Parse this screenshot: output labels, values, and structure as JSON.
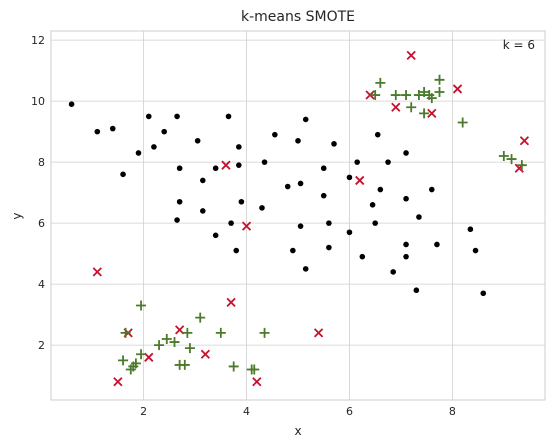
{
  "chart_data": {
    "type": "scatter",
    "title": "k-means SMOTE",
    "xlabel": "x",
    "ylabel": "y",
    "annotation": "k = 6",
    "xlim": [
      0.2,
      9.8
    ],
    "ylim": [
      0.2,
      12.3
    ],
    "xticks": [
      2,
      4,
      6,
      8
    ],
    "yticks": [
      2,
      4,
      6,
      8,
      10,
      12
    ],
    "grid": true,
    "legend": "none",
    "series": [
      {
        "marker": "circle",
        "color": "#000000",
        "points": [
          [
            0.6,
            9.9
          ],
          [
            1.1,
            9.0
          ],
          [
            1.4,
            9.1
          ],
          [
            1.6,
            7.6
          ],
          [
            1.9,
            8.3
          ],
          [
            2.1,
            9.5
          ],
          [
            2.2,
            8.5
          ],
          [
            2.4,
            9.0
          ],
          [
            2.65,
            9.5
          ],
          [
            2.7,
            7.8
          ],
          [
            2.7,
            6.7
          ],
          [
            2.65,
            6.1
          ],
          [
            3.05,
            8.7
          ],
          [
            3.15,
            7.4
          ],
          [
            3.15,
            6.4
          ],
          [
            3.4,
            5.6
          ],
          [
            3.4,
            7.8
          ],
          [
            3.65,
            9.5
          ],
          [
            3.7,
            6.0
          ],
          [
            3.8,
            5.1
          ],
          [
            3.85,
            8.5
          ],
          [
            3.85,
            7.9
          ],
          [
            3.9,
            6.7
          ],
          [
            4.35,
            8.0
          ],
          [
            4.3,
            6.5
          ],
          [
            4.55,
            8.9
          ],
          [
            4.8,
            7.2
          ],
          [
            4.9,
            5.1
          ],
          [
            5.0,
            8.7
          ],
          [
            5.05,
            7.3
          ],
          [
            5.05,
            5.9
          ],
          [
            5.15,
            9.4
          ],
          [
            5.15,
            4.5
          ],
          [
            5.5,
            6.9
          ],
          [
            5.5,
            7.8
          ],
          [
            5.6,
            6.0
          ],
          [
            5.6,
            5.2
          ],
          [
            5.7,
            8.6
          ],
          [
            6.0,
            7.5
          ],
          [
            6.0,
            5.7
          ],
          [
            6.15,
            8.0
          ],
          [
            6.25,
            4.9
          ],
          [
            6.45,
            6.6
          ],
          [
            6.5,
            6.0
          ],
          [
            6.55,
            8.9
          ],
          [
            6.6,
            7.1
          ],
          [
            6.75,
            8.0
          ],
          [
            6.85,
            4.4
          ],
          [
            7.1,
            8.3
          ],
          [
            7.1,
            6.8
          ],
          [
            7.1,
            5.3
          ],
          [
            7.1,
            4.9
          ],
          [
            7.3,
            3.8
          ],
          [
            7.35,
            6.2
          ],
          [
            7.6,
            7.1
          ],
          [
            7.7,
            5.3
          ],
          [
            8.35,
            5.8
          ],
          [
            8.45,
            5.1
          ],
          [
            8.6,
            3.7
          ]
        ]
      },
      {
        "marker": "x",
        "color": "#c8102e",
        "points": [
          [
            1.1,
            4.4
          ],
          [
            1.5,
            0.8
          ],
          [
            1.7,
            2.4
          ],
          [
            2.1,
            1.6
          ],
          [
            2.7,
            2.5
          ],
          [
            3.2,
            1.7
          ],
          [
            3.7,
            3.4
          ],
          [
            3.6,
            7.9
          ],
          [
            4.0,
            5.9
          ],
          [
            4.2,
            0.8
          ],
          [
            5.4,
            2.4
          ],
          [
            6.2,
            7.4
          ],
          [
            6.4,
            10.2
          ],
          [
            7.2,
            11.5
          ],
          [
            6.9,
            9.8
          ],
          [
            7.6,
            9.6
          ],
          [
            8.1,
            10.4
          ],
          [
            9.3,
            7.8
          ],
          [
            9.4,
            8.7
          ]
        ]
      },
      {
        "marker": "plus",
        "color": "#4a7a2a",
        "points": [
          [
            1.6,
            1.5
          ],
          [
            1.65,
            2.4
          ],
          [
            1.75,
            1.2
          ],
          [
            1.8,
            1.3
          ],
          [
            1.85,
            1.4
          ],
          [
            1.95,
            3.3
          ],
          [
            1.95,
            1.7
          ],
          [
            2.3,
            2.0
          ],
          [
            2.45,
            2.2
          ],
          [
            2.6,
            2.1
          ],
          [
            2.7,
            1.35
          ],
          [
            2.8,
            1.35
          ],
          [
            2.85,
            2.4
          ],
          [
            2.9,
            1.9
          ],
          [
            3.1,
            2.9
          ],
          [
            3.5,
            2.4
          ],
          [
            3.75,
            1.3
          ],
          [
            4.1,
            1.2
          ],
          [
            4.15,
            1.2
          ],
          [
            4.35,
            2.4
          ],
          [
            6.5,
            10.2
          ],
          [
            6.6,
            10.6
          ],
          [
            6.9,
            10.2
          ],
          [
            7.1,
            10.2
          ],
          [
            7.2,
            9.8
          ],
          [
            7.35,
            10.2
          ],
          [
            7.45,
            10.3
          ],
          [
            7.45,
            9.6
          ],
          [
            7.55,
            10.2
          ],
          [
            7.6,
            10.1
          ],
          [
            7.75,
            10.3
          ],
          [
            7.75,
            10.7
          ],
          [
            8.2,
            9.3
          ],
          [
            9.0,
            8.2
          ],
          [
            9.15,
            8.1
          ],
          [
            9.35,
            7.9
          ]
        ]
      }
    ]
  }
}
